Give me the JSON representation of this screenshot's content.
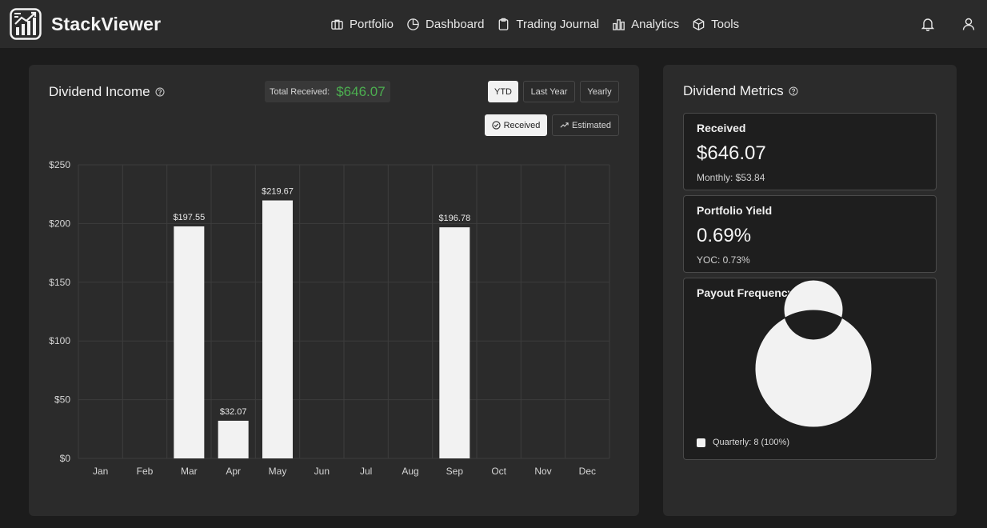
{
  "app": {
    "name": "StackViewer"
  },
  "nav": [
    {
      "label": "Portfolio",
      "icon": "briefcase-icon"
    },
    {
      "label": "Dashboard",
      "icon": "pie-chart-icon"
    },
    {
      "label": "Trading Journal",
      "icon": "clipboard-icon"
    },
    {
      "label": "Analytics",
      "icon": "bar-chart-icon"
    },
    {
      "label": "Tools",
      "icon": "box-icon"
    }
  ],
  "income": {
    "title": "Dividend Income",
    "total_label": "Total Received:",
    "total_value": "$646.07",
    "range_buttons": [
      "YTD",
      "Last Year",
      "Yearly"
    ],
    "active_range": "YTD",
    "mode_buttons": [
      "Received",
      "Estimated"
    ],
    "active_mode": "Received"
  },
  "chart_data": {
    "type": "bar",
    "categories": [
      "Jan",
      "Feb",
      "Mar",
      "Apr",
      "May",
      "Jun",
      "Jul",
      "Aug",
      "Sep",
      "Oct",
      "Nov",
      "Dec"
    ],
    "values": [
      0,
      0,
      197.55,
      32.07,
      219.67,
      0,
      0,
      0,
      196.78,
      0,
      0,
      0
    ],
    "value_labels": [
      "",
      "",
      "$197.55",
      "$32.07",
      "$219.67",
      "",
      "",
      "",
      "$196.78",
      "",
      "",
      ""
    ],
    "y_ticks": [
      0,
      50,
      100,
      150,
      200,
      250
    ],
    "y_tick_labels": [
      "$0",
      "$50",
      "$100",
      "$150",
      "$200",
      "$250"
    ],
    "ylim": [
      0,
      250
    ],
    "grid": true,
    "bar_color": "#f2f2f2"
  },
  "metrics": {
    "title": "Dividend Metrics",
    "received": {
      "title": "Received",
      "value": "$646.07",
      "sub": "Monthly: $53.84"
    },
    "yield": {
      "title": "Portfolio Yield",
      "value": "0.69%",
      "sub": "YOC: 0.73%"
    },
    "frequency": {
      "title": "Payout Frequency",
      "chart_data": {
        "type": "pie",
        "labels": [
          "Quarterly"
        ],
        "values": [
          8
        ],
        "percent": [
          100
        ]
      },
      "legend_label": "Quarterly: 8 (100%)"
    }
  },
  "colors": {
    "accent_green": "#4caf50",
    "bar": "#f2f2f2",
    "card": "#2b2b2b",
    "bg": "#1c1c1c"
  }
}
